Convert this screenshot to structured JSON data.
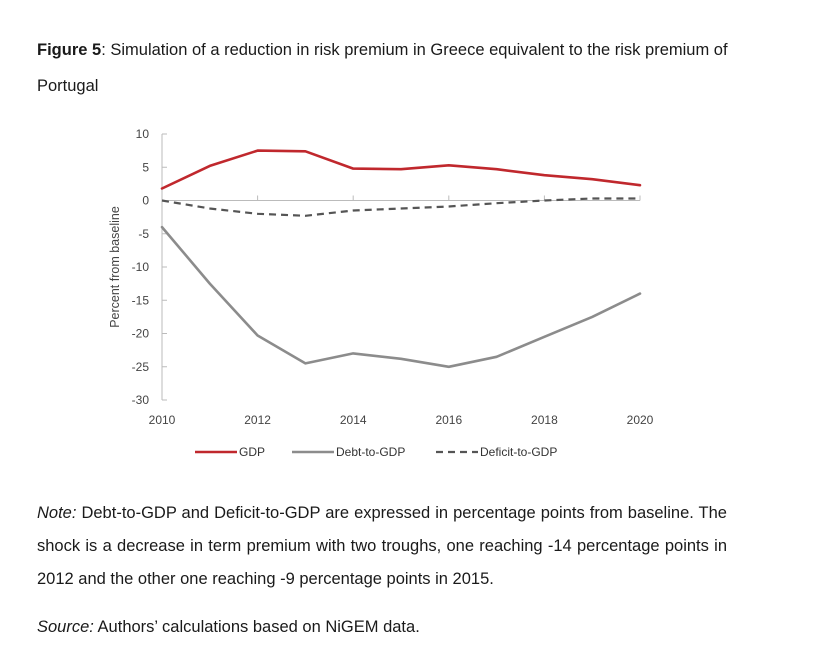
{
  "caption": {
    "figure_label": "Figure 5",
    "title_text": ": Simulation of a reduction in risk premium in Greece equivalent to the risk premium of Portugal"
  },
  "chart_data": {
    "type": "line",
    "x": [
      2010,
      2011,
      2012,
      2013,
      2014,
      2015,
      2016,
      2017,
      2018,
      2019,
      2020
    ],
    "xticks": [
      "2010",
      "2012",
      "2014",
      "2016",
      "2018",
      "2020"
    ],
    "yticks": [
      "10",
      "5",
      "0",
      "-5",
      "-10",
      "-15",
      "-20",
      "-25",
      "-30"
    ],
    "ylabel": "Percent from baseline",
    "xlim": [
      2010,
      2020
    ],
    "ylim": [
      -30,
      10
    ],
    "legend_position": "bottom",
    "series": [
      {
        "name": "GDP",
        "color": "#c0282d",
        "dash": "solid",
        "values": [
          1.8,
          5.2,
          7.5,
          7.4,
          4.8,
          4.7,
          5.3,
          4.7,
          3.8,
          3.2,
          2.3
        ]
      },
      {
        "name": "Debt-to-GDP",
        "color": "#8c8c8c",
        "dash": "solid",
        "values": [
          -4.0,
          -12.5,
          -20.3,
          -24.5,
          -23.0,
          -23.8,
          -25.0,
          -23.5,
          -20.5,
          -17.5,
          -14.0
        ]
      },
      {
        "name": "Deficit-to-GDP",
        "color": "#555555",
        "dash": "dashed",
        "values": [
          0.0,
          -1.2,
          -2.0,
          -2.3,
          -1.5,
          -1.2,
          -0.9,
          -0.4,
          0.0,
          0.3,
          0.3
        ]
      }
    ]
  },
  "note": {
    "label": "Note:",
    "text": " Debt-to-GDP and Deficit-to-GDP are expressed in percentage points from baseline. The shock is a decrease in term premium with two troughs, one reaching -14 percentage points in 2012 and the other one reaching -9 percentage points in 2015."
  },
  "source": {
    "label": "Source:",
    "text": " Authors’ calculations based on NiGEM data."
  }
}
